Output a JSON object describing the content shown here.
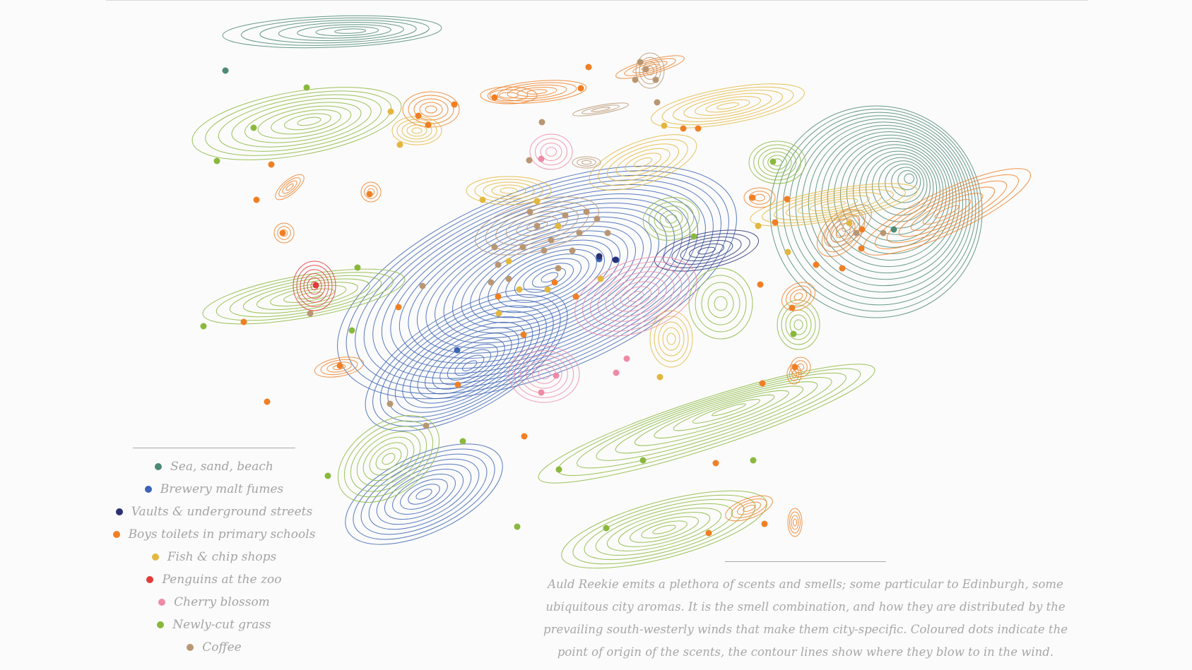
{
  "legend": {
    "items": [
      {
        "label": "Sea, sand, beach",
        "color": "#4d8a74",
        "key": "sea"
      },
      {
        "label": "Brewery malt fumes",
        "color": "#3c64b4",
        "key": "malt"
      },
      {
        "label": "Vaults & underground streets",
        "color": "#2a3274",
        "key": "vaults"
      },
      {
        "label": "Boys toilets in primary schools",
        "color": "#f07f24",
        "key": "toilets"
      },
      {
        "label": "Fish & chip shops",
        "color": "#e3b73e",
        "key": "fish"
      },
      {
        "label": "Penguins at the zoo",
        "color": "#e33a3a",
        "key": "penguins"
      },
      {
        "label": "Cherry blossom",
        "color": "#ef8aa6",
        "key": "blossom"
      },
      {
        "label": "Newly-cut grass",
        "color": "#8ab83c",
        "key": "grass"
      },
      {
        "label": "Coffee",
        "color": "#b99672",
        "key": "coffee"
      }
    ]
  },
  "caption": {
    "text": "Auld Reekie emits a plethora of scents and smells; some particular to Edinburgh, some ubiquitous city aromas. It is the smell combination, and how they are distributed by the prevailing south-westerly winds that make them city-specific. Coloured dots indicate the point of origin of the scents, the contour lines show where they blow to in the wind."
  }
}
